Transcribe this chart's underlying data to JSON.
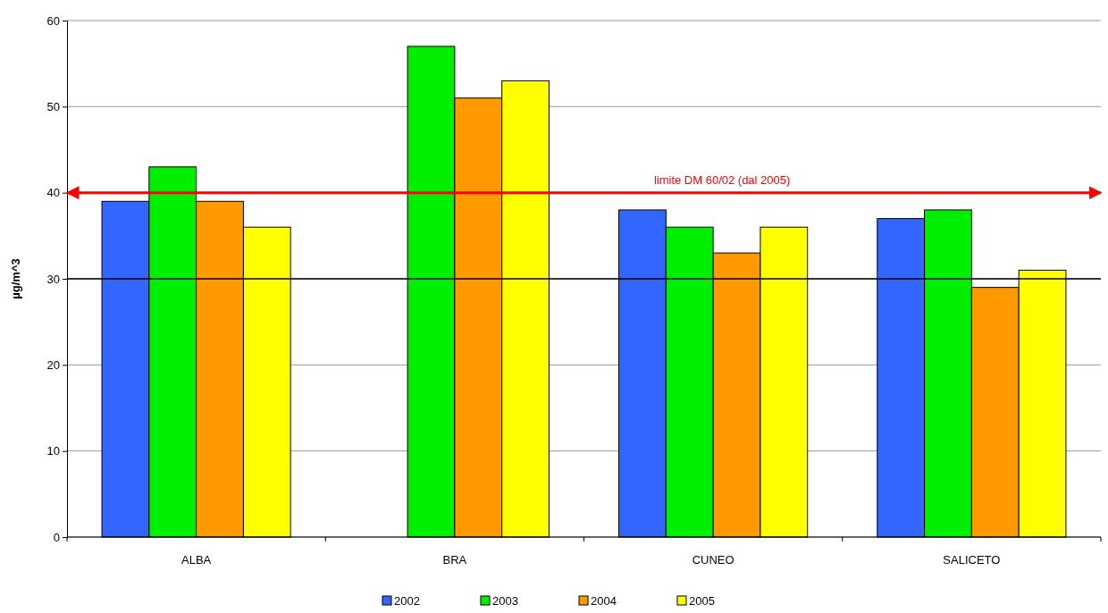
{
  "chart_data": {
    "type": "bar",
    "ylabel": "µg/m^3",
    "categories": [
      "ALBA",
      "BRA",
      "CUNEO",
      "SALICETO"
    ],
    "series": [
      {
        "name": "2002",
        "color": "#3366ff",
        "values": [
          39,
          null,
          38,
          37
        ]
      },
      {
        "name": "2003",
        "color": "#00ee00",
        "values": [
          43,
          57,
          36,
          38
        ]
      },
      {
        "name": "2004",
        "color": "#ff9900",
        "values": [
          39,
          51,
          33,
          29
        ]
      },
      {
        "name": "2005",
        "color": "#ffff00",
        "values": [
          36,
          53,
          36,
          31
        ]
      }
    ],
    "ylim": [
      0,
      60
    ],
    "yticks": [
      0,
      10,
      20,
      30,
      40,
      50,
      60
    ],
    "grid": "y",
    "legend": "bottom",
    "ref_lines": [
      {
        "axis": "y",
        "value": 40,
        "label": "limite DM 60/02 (dal 2005)",
        "color": "#ff0000"
      },
      {
        "axis": "y",
        "value": 30,
        "color": "#000000"
      }
    ]
  }
}
